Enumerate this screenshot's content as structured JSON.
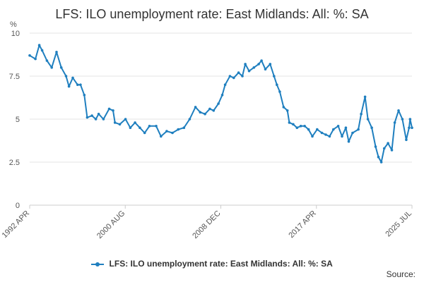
{
  "chart_data": {
    "type": "line",
    "title": "LFS: ILO unemployment rate: East Midlands: All: %: SA",
    "ylabel": "%",
    "xlabel": "",
    "ylim": [
      0,
      10
    ],
    "yticks": [
      "0",
      "2.5",
      "5",
      "7.5",
      "10"
    ],
    "x_tick_labels": [
      "1992 APR",
      "2000 AUG",
      "2008 DEC",
      "2017 APR",
      "2025 JUL"
    ],
    "x_range": [
      "1992-04",
      "2025-07"
    ],
    "grid": true,
    "legend": "bottom",
    "source_label": "Source:",
    "color": "#1f7fbf",
    "series": [
      {
        "name": "LFS: ILO unemployment rate: East Midlands: All: %: SA",
        "points": [
          [
            "1992-04",
            8.7
          ],
          [
            "1992-10",
            8.5
          ],
          [
            "1993-02",
            9.3
          ],
          [
            "1993-05",
            9.0
          ],
          [
            "1993-10",
            8.4
          ],
          [
            "1994-03",
            8.0
          ],
          [
            "1994-08",
            8.9
          ],
          [
            "1995-01",
            8.0
          ],
          [
            "1995-06",
            7.5
          ],
          [
            "1995-09",
            6.9
          ],
          [
            "1996-01",
            7.4
          ],
          [
            "1996-06",
            7.0
          ],
          [
            "1996-09",
            7.0
          ],
          [
            "1997-01",
            6.4
          ],
          [
            "1997-04",
            5.1
          ],
          [
            "1997-09",
            5.2
          ],
          [
            "1998-01",
            5.0
          ],
          [
            "1998-04",
            5.3
          ],
          [
            "1998-09",
            5.0
          ],
          [
            "1999-03",
            5.6
          ],
          [
            "1999-07",
            5.5
          ],
          [
            "1999-09",
            4.8
          ],
          [
            "2000-02",
            4.7
          ],
          [
            "2000-08",
            5.0
          ],
          [
            "2001-01",
            4.5
          ],
          [
            "2001-06",
            4.8
          ],
          [
            "2001-11",
            4.5
          ],
          [
            "2002-04",
            4.2
          ],
          [
            "2002-09",
            4.6
          ],
          [
            "2003-04",
            4.6
          ],
          [
            "2003-09",
            4.0
          ],
          [
            "2004-03",
            4.3
          ],
          [
            "2004-09",
            4.2
          ],
          [
            "2005-03",
            4.4
          ],
          [
            "2005-09",
            4.5
          ],
          [
            "2006-03",
            5.0
          ],
          [
            "2006-09",
            5.7
          ],
          [
            "2007-02",
            5.4
          ],
          [
            "2007-07",
            5.3
          ],
          [
            "2007-12",
            5.6
          ],
          [
            "2008-04",
            5.5
          ],
          [
            "2008-09",
            5.9
          ],
          [
            "2009-01",
            6.4
          ],
          [
            "2009-04",
            7.0
          ],
          [
            "2009-09",
            7.5
          ],
          [
            "2010-01",
            7.4
          ],
          [
            "2010-06",
            7.7
          ],
          [
            "2010-10",
            7.5
          ],
          [
            "2011-01",
            8.2
          ],
          [
            "2011-05",
            7.8
          ],
          [
            "2011-10",
            8.0
          ],
          [
            "2012-03",
            8.2
          ],
          [
            "2012-06",
            8.4
          ],
          [
            "2012-10",
            7.9
          ],
          [
            "2013-03",
            8.2
          ],
          [
            "2013-07",
            7.5
          ],
          [
            "2013-10",
            7.0
          ],
          [
            "2014-01",
            6.6
          ],
          [
            "2014-05",
            5.7
          ],
          [
            "2014-09",
            5.5
          ],
          [
            "2014-11",
            4.8
          ],
          [
            "2015-03",
            4.7
          ],
          [
            "2015-07",
            4.5
          ],
          [
            "2015-11",
            4.6
          ],
          [
            "2016-03",
            4.6
          ],
          [
            "2016-07",
            4.4
          ],
          [
            "2016-11",
            4.0
          ],
          [
            "2017-04",
            4.4
          ],
          [
            "2017-09",
            4.2
          ],
          [
            "2018-01",
            4.1
          ],
          [
            "2018-05",
            4.0
          ],
          [
            "2018-09",
            4.4
          ],
          [
            "2019-02",
            4.6
          ],
          [
            "2019-06",
            4.0
          ],
          [
            "2019-10",
            4.5
          ],
          [
            "2020-01",
            3.7
          ],
          [
            "2020-05",
            4.2
          ],
          [
            "2020-11",
            4.4
          ],
          [
            "2021-02",
            5.3
          ],
          [
            "2021-06",
            6.3
          ],
          [
            "2021-09",
            5.0
          ],
          [
            "2022-01",
            4.5
          ],
          [
            "2022-05",
            3.4
          ],
          [
            "2022-08",
            2.8
          ],
          [
            "2022-11",
            2.5
          ],
          [
            "2023-02",
            3.3
          ],
          [
            "2023-06",
            3.6
          ],
          [
            "2023-10",
            3.2
          ],
          [
            "2024-01",
            4.8
          ],
          [
            "2024-05",
            5.5
          ],
          [
            "2024-09",
            5.0
          ],
          [
            "2025-01",
            3.8
          ],
          [
            "2025-04",
            4.5
          ],
          [
            "2025-05",
            5.0
          ],
          [
            "2025-07",
            4.5
          ]
        ]
      }
    ]
  }
}
